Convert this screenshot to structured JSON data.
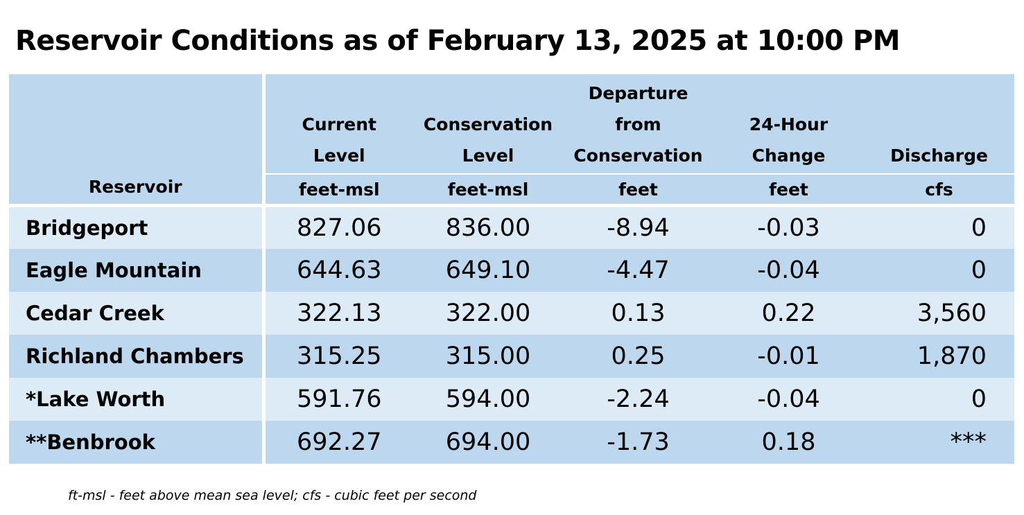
{
  "title": "Reservoir Conditions as of February 13, 2025 at 10:00 PM",
  "headers": {
    "reservoir": "Reservoir",
    "current_level": [
      "Current",
      "Level"
    ],
    "conservation_level": [
      "Conservation",
      "Level"
    ],
    "departure": [
      "Departure",
      "from",
      "Conservation"
    ],
    "change_24h": [
      "24-Hour",
      "Change"
    ],
    "discharge": "Discharge"
  },
  "units": {
    "current_level": "feet-msl",
    "conservation_level": "feet-msl",
    "departure": "feet",
    "change_24h": "feet",
    "discharge": "cfs"
  },
  "rows": [
    {
      "name": "Bridgeport",
      "current": "827.06",
      "conservation": "836.00",
      "departure": "-8.94",
      "change": "-0.03",
      "discharge": "0"
    },
    {
      "name": "Eagle Mountain",
      "current": "644.63",
      "conservation": "649.10",
      "departure": "-4.47",
      "change": "-0.04",
      "discharge": "0"
    },
    {
      "name": "Cedar Creek",
      "current": "322.13",
      "conservation": "322.00",
      "departure": "0.13",
      "change": "0.22",
      "discharge": "3,560"
    },
    {
      "name": "Richland Chambers",
      "current": "315.25",
      "conservation": "315.00",
      "departure": "0.25",
      "change": "-0.01",
      "discharge": "1,870"
    },
    {
      "name": "*Lake Worth",
      "current": "591.76",
      "conservation": "594.00",
      "departure": "-2.24",
      "change": "-0.04",
      "discharge": "0"
    },
    {
      "name": "**Benbrook",
      "current": "692.27",
      "conservation": "694.00",
      "departure": "-1.73",
      "change": "0.18",
      "discharge": "***"
    }
  ],
  "footnote": "ft-msl - feet above mean sea level; cfs - cubic feet per second",
  "colors": {
    "header_bg": "#bdd7ee",
    "row_light": "#ddebf7",
    "row_dark": "#bdd7ee"
  }
}
